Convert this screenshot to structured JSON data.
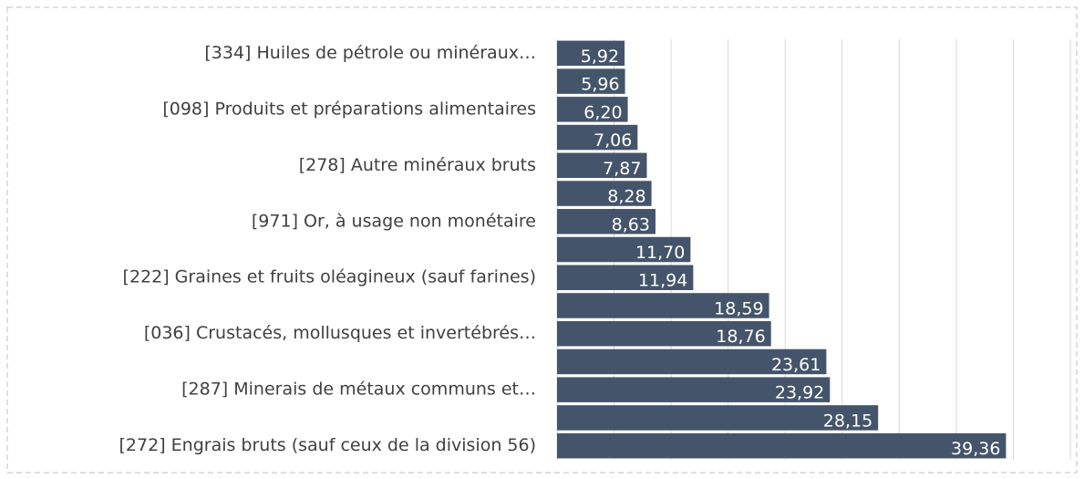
{
  "chart_data": {
    "type": "hbar",
    "categories": [
      "[334] Huiles de pétrole ou minéraux…",
      null,
      "[098] Produits et préparations alimentaires",
      null,
      "[278] Autre minéraux bruts",
      null,
      "[971] Or, à usage non monétaire",
      null,
      "[222] Graines et fruits oléagineux (sauf farines)",
      null,
      "[036] Crustacés, mollusques et invertébrés…",
      null,
      "[287] Minerais de métaux communs et…",
      null,
      "[272] Engrais bruts (sauf ceux de la division 56)"
    ],
    "values": [
      5.92,
      5.96,
      6.2,
      7.06,
      7.87,
      8.28,
      8.63,
      11.7,
      11.94,
      18.59,
      18.76,
      23.61,
      23.92,
      28.15,
      39.36
    ],
    "value_labels": [
      "5,92",
      "5,96",
      "6,20",
      "7,06",
      "7,87",
      "8,28",
      "8,63",
      "11,70",
      "11,94",
      "18,59",
      "18,76",
      "23,61",
      "23,92",
      "28,15",
      "39,36"
    ],
    "color": "#44546a",
    "xlim": [
      0,
      45
    ],
    "xticks": [
      0,
      5,
      10,
      15,
      20,
      25,
      30,
      35,
      40,
      45
    ],
    "grid": true
  }
}
